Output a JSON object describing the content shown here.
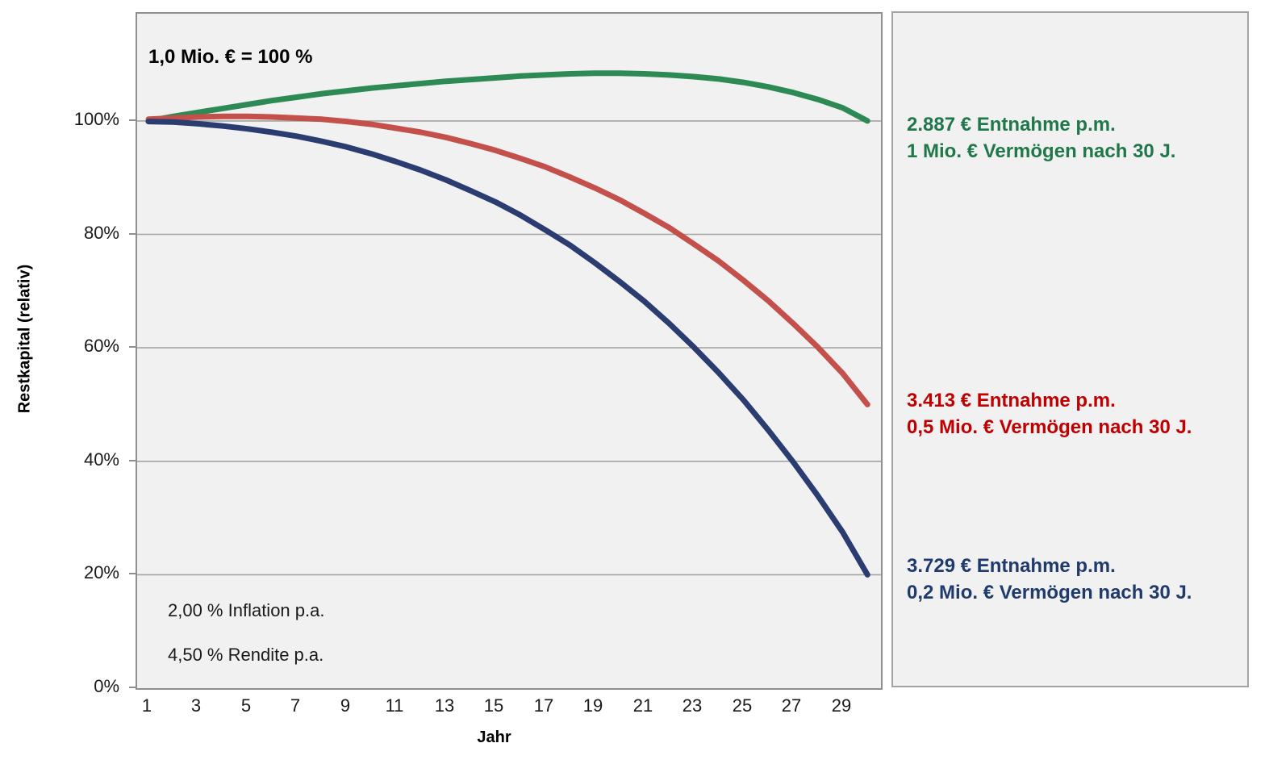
{
  "chart": {
    "title_annotation": "1,0 Mio. € = 100 %",
    "ylabel": "Restkapital (relativ)",
    "xlabel": "Jahr",
    "annotations": {
      "inflation": "2,00 % Inflation p.a.",
      "rendite": "4,50 % Rendite p.a."
    }
  },
  "legend": {
    "entries": [
      {
        "key": "green",
        "color": "#20784a",
        "line1": "2.887 € Entnahme p.m.",
        "line2": "1 Mio. € Vermögen nach 30 J."
      },
      {
        "key": "red",
        "color": "#c00000",
        "line1": "3.413 € Entnahme p.m.",
        "line2": "0,5 Mio. € Vermögen nach 30 J."
      },
      {
        "key": "blue",
        "color": "#1f3a6d",
        "line1": "3.729 € Entnahme p.m.",
        "line2": "0,2 Mio. € Vermögen nach 30 J."
      }
    ]
  },
  "chart_data": {
    "type": "line",
    "title": "1,0 Mio. € = 100 %",
    "xlabel": "Jahr",
    "ylabel": "Restkapital (relativ)",
    "grid": "horizontal",
    "xlim": [
      0.545,
      30.545
    ],
    "ylim": [
      0,
      118.9
    ],
    "x": [
      1,
      2,
      3,
      4,
      5,
      6,
      7,
      8,
      9,
      10,
      11,
      12,
      13,
      14,
      15,
      16,
      17,
      18,
      19,
      20,
      21,
      22,
      23,
      24,
      25,
      26,
      27,
      28,
      29,
      30
    ],
    "xticks": [
      1,
      3,
      5,
      7,
      9,
      11,
      13,
      15,
      17,
      19,
      21,
      23,
      25,
      27,
      29
    ],
    "ytick_values": [
      0,
      20,
      40,
      60,
      80,
      100
    ],
    "ytick_labels": [
      "0%",
      "20%",
      "40%",
      "60%",
      "80%",
      "100%"
    ],
    "annotations": [
      "1,0 Mio. € = 100 %",
      "2,00 % Inflation p.a.",
      "4,50 % Rendite p.a."
    ],
    "units": "percent of 1,0 Mio. €",
    "series": [
      {
        "name": "2.887 € Entnahme p.m. / 1 Mio. € Vermögen nach 30 J.",
        "key": "green",
        "color": "#2d8a55",
        "values": [
          100.0,
          100.8,
          101.5,
          102.2,
          102.9,
          103.6,
          104.2,
          104.8,
          105.3,
          105.8,
          106.2,
          106.6,
          107.0,
          107.3,
          107.6,
          107.9,
          108.1,
          108.3,
          108.4,
          108.4,
          108.3,
          108.1,
          107.8,
          107.4,
          106.8,
          106.0,
          105.0,
          103.8,
          102.3,
          100.0
        ]
      },
      {
        "name": "3.413 € Entnahme p.m. / 0,5 Mio. € Vermögen nach 30 J.",
        "key": "red",
        "color": "#c4504b",
        "values": [
          100.3,
          100.5,
          100.7,
          100.8,
          100.8,
          100.7,
          100.5,
          100.3,
          99.9,
          99.4,
          98.7,
          98.0,
          97.1,
          96.0,
          94.8,
          93.4,
          91.9,
          90.1,
          88.2,
          86.1,
          83.7,
          81.2,
          78.3,
          75.3,
          71.9,
          68.3,
          64.3,
          60.1,
          55.5,
          50.0
        ]
      },
      {
        "name": "3.729 € Entnahme p.m. / 0,2 Mio. € Vermögen nach 30 J.",
        "key": "blue",
        "color": "#2b3c71",
        "values": [
          99.9,
          99.8,
          99.5,
          99.1,
          98.6,
          98.0,
          97.3,
          96.4,
          95.4,
          94.2,
          92.8,
          91.3,
          89.6,
          87.7,
          85.7,
          83.4,
          80.8,
          78.1,
          75.0,
          71.7,
          68.2,
          64.3,
          60.1,
          55.6,
          50.8,
          45.5,
          39.9,
          33.9,
          27.5,
          20.0
        ]
      }
    ]
  },
  "colors": {
    "plot_bg": "#f1f1f1",
    "panel_bg": "#f1f1f1",
    "grid": "#a3a3a3",
    "plot_border": "#8f8f8f",
    "panel_border": "#a3a3a3"
  }
}
